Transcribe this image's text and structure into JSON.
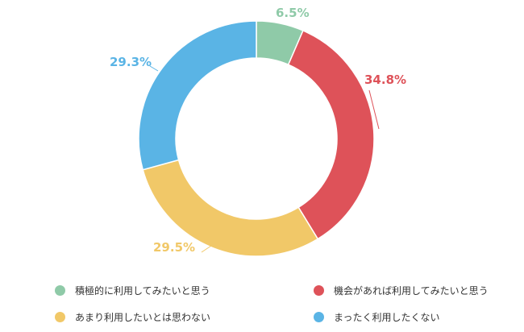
{
  "chart_data": {
    "type": "pie",
    "donut": true,
    "legend_position": "bottom",
    "categories": [
      "積極的に利用してみたいと思う",
      "機会があれば利用してみたいと思う",
      "あまり利用したいとは思わない",
      "まったく利用したくない"
    ],
    "values": [
      6.5,
      34.8,
      29.5,
      29.3
    ],
    "value_labels": [
      "6.5%",
      "34.8%",
      "29.5%",
      "29.3%"
    ],
    "colors": [
      "#8fcaa8",
      "#de5259",
      "#f1c868",
      "#5ab4e5"
    ]
  }
}
